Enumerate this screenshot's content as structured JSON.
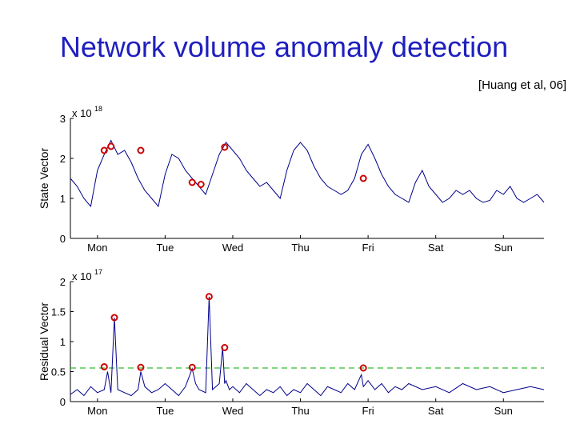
{
  "slide": {
    "title": "Network volume anomaly detection",
    "citation": "[Huang et al, 06]"
  },
  "colors": {
    "title": "#1f1fbf",
    "series": "#00008b",
    "anomaly_marker": "#cc0000",
    "threshold": "#33bb33"
  },
  "chart_data": [
    {
      "type": "line",
      "ylabel": "State Vector",
      "multiplier_base": "x 10",
      "multiplier_exp": "18",
      "ylim": [
        0,
        3
      ],
      "yticks": [
        0,
        1,
        2,
        3
      ],
      "ytick_labels": [
        "0",
        "1",
        "2",
        "3"
      ],
      "xlim": [
        0,
        7
      ],
      "xticks": [
        0.4,
        1.4,
        2.4,
        3.4,
        4.4,
        5.4,
        6.4
      ],
      "xtick_labels": [
        "Mon",
        "Tue",
        "Wed",
        "Thu",
        "Fri",
        "Sat",
        "Sun"
      ],
      "series": [
        {
          "x": [
            0,
            0.1,
            0.2,
            0.3,
            0.4,
            0.5,
            0.6,
            0.7,
            0.8,
            0.9,
            1.0,
            1.1,
            1.2,
            1.3,
            1.4,
            1.5,
            1.6,
            1.7,
            1.8,
            1.9,
            2.0,
            2.1,
            2.2,
            2.3,
            2.4,
            2.5,
            2.6,
            2.7,
            2.8,
            2.9,
            3.0,
            3.1,
            3.2,
            3.3,
            3.4,
            3.5,
            3.6,
            3.7,
            3.8,
            3.9,
            4.0,
            4.1,
            4.2,
            4.3,
            4.4,
            4.5,
            4.6,
            4.7,
            4.8,
            4.9,
            5.0,
            5.1,
            5.2,
            5.3,
            5.4,
            5.5,
            5.6,
            5.7,
            5.8,
            5.9,
            6.0,
            6.1,
            6.2,
            6.3,
            6.4,
            6.5,
            6.6,
            6.7,
            6.8,
            6.9,
            7.0
          ],
          "values": [
            1.5,
            1.3,
            1.0,
            0.8,
            1.7,
            2.1,
            2.45,
            2.1,
            2.2,
            1.9,
            1.5,
            1.2,
            1.0,
            0.8,
            1.6,
            2.1,
            2.0,
            1.7,
            1.5,
            1.3,
            1.1,
            1.6,
            2.1,
            2.4,
            2.2,
            2.0,
            1.7,
            1.5,
            1.3,
            1.4,
            1.2,
            1.0,
            1.7,
            2.2,
            2.4,
            2.2,
            1.8,
            1.5,
            1.3,
            1.2,
            1.1,
            1.2,
            1.5,
            2.1,
            2.35,
            2.0,
            1.6,
            1.3,
            1.1,
            1.0,
            0.9,
            1.4,
            1.7,
            1.3,
            1.1,
            0.9,
            1.0,
            1.2,
            1.1,
            1.2,
            1.0,
            0.9,
            0.95,
            1.2,
            1.1,
            1.3,
            1.0,
            0.9,
            1.0,
            1.1,
            0.9
          ]
        }
      ],
      "anomalies": {
        "x": [
          0.5,
          0.6,
          1.04,
          1.8,
          1.93,
          2.28,
          4.33
        ],
        "y": [
          2.2,
          2.3,
          2.2,
          1.4,
          1.35,
          2.28,
          1.5
        ]
      }
    },
    {
      "type": "line",
      "ylabel": "Residual Vector",
      "multiplier_base": "x 10",
      "multiplier_exp": "17",
      "ylim": [
        0,
        2
      ],
      "yticks": [
        0,
        0.5,
        1,
        1.5,
        2
      ],
      "ytick_labels": [
        "0",
        "0.5",
        "1",
        "1.5",
        "2"
      ],
      "xlim": [
        0,
        7
      ],
      "xticks": [
        0.4,
        1.4,
        2.4,
        3.4,
        4.4,
        5.4,
        6.4
      ],
      "xtick_labels": [
        "Mon",
        "Tue",
        "Wed",
        "Thu",
        "Fri",
        "Sat",
        "Sun"
      ],
      "threshold": 0.56,
      "series": [
        {
          "x": [
            0,
            0.1,
            0.2,
            0.3,
            0.4,
            0.5,
            0.55,
            0.6,
            0.65,
            0.7,
            0.8,
            0.9,
            1.0,
            1.04,
            1.1,
            1.2,
            1.3,
            1.4,
            1.5,
            1.6,
            1.7,
            1.8,
            1.85,
            1.9,
            2.0,
            2.05,
            2.1,
            2.2,
            2.25,
            2.28,
            2.3,
            2.35,
            2.4,
            2.5,
            2.6,
            2.7,
            2.8,
            2.9,
            3.0,
            3.1,
            3.2,
            3.3,
            3.4,
            3.5,
            3.6,
            3.7,
            3.8,
            3.9,
            4.0,
            4.1,
            4.2,
            4.3,
            4.33,
            4.4,
            4.5,
            4.6,
            4.7,
            4.8,
            4.9,
            5.0,
            5.2,
            5.4,
            5.6,
            5.8,
            6.0,
            6.2,
            6.4,
            6.6,
            6.8,
            7.0
          ],
          "values": [
            0.12,
            0.2,
            0.1,
            0.25,
            0.15,
            0.2,
            0.5,
            0.15,
            1.4,
            0.2,
            0.15,
            0.1,
            0.2,
            0.5,
            0.25,
            0.15,
            0.2,
            0.3,
            0.2,
            0.1,
            0.25,
            0.55,
            0.3,
            0.2,
            0.15,
            1.75,
            0.2,
            0.3,
            0.9,
            0.3,
            0.35,
            0.2,
            0.25,
            0.15,
            0.3,
            0.2,
            0.1,
            0.2,
            0.15,
            0.25,
            0.1,
            0.2,
            0.15,
            0.3,
            0.2,
            0.1,
            0.25,
            0.2,
            0.15,
            0.3,
            0.2,
            0.45,
            0.25,
            0.35,
            0.2,
            0.3,
            0.15,
            0.25,
            0.2,
            0.3,
            0.2,
            0.25,
            0.15,
            0.3,
            0.2,
            0.25,
            0.15,
            0.2,
            0.25,
            0.2
          ]
        }
      ],
      "anomalies": {
        "x": [
          0.5,
          0.65,
          1.04,
          1.8,
          2.05,
          2.28,
          4.33
        ],
        "y": [
          0.58,
          1.4,
          0.57,
          0.57,
          1.75,
          0.9,
          0.56
        ]
      }
    }
  ]
}
